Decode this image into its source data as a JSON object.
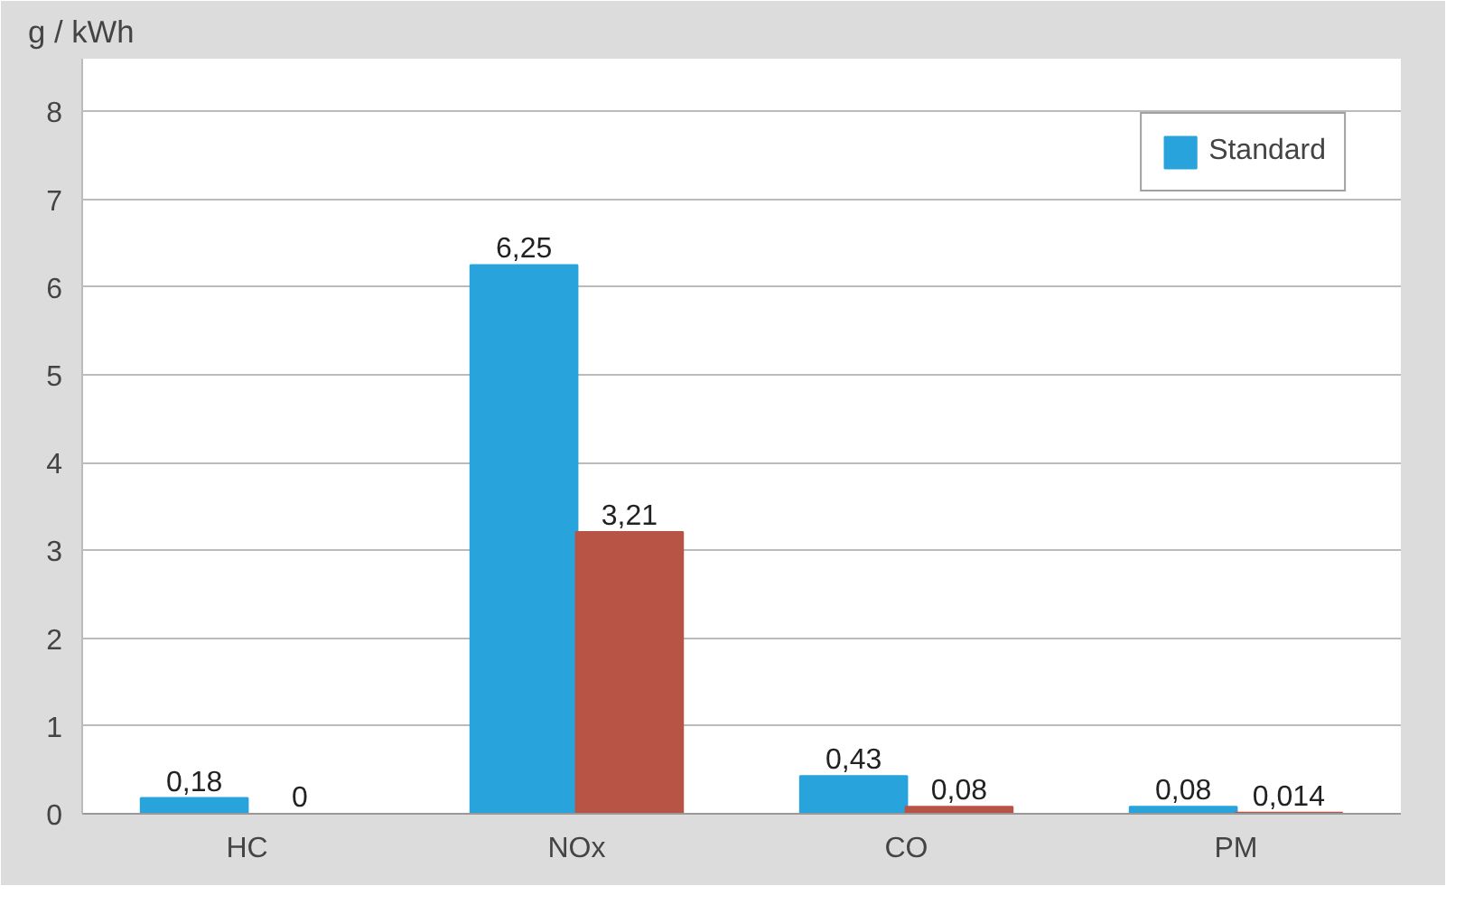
{
  "chart_data": {
    "type": "bar",
    "ylabel": "g / kWh",
    "categories": [
      "HC",
      "NOx",
      "CO",
      "PM"
    ],
    "series": [
      {
        "name": "Standard",
        "color": "#29a3dc",
        "values": [
          0.18,
          6.25,
          0.43,
          0.08
        ],
        "value_labels": [
          "0,18",
          "6,25",
          "0,43",
          "0,08"
        ]
      },
      {
        "color": "#b85445",
        "values": [
          0,
          3.21,
          0.08,
          0.014
        ],
        "value_labels": [
          "0",
          "3,21",
          "0,08",
          "0,014"
        ]
      }
    ],
    "ylim": [
      0,
      8.6
    ],
    "yticks": [
      0,
      1,
      2,
      3,
      4,
      5,
      6,
      7,
      8
    ],
    "grid": "y",
    "legend": "top right"
  }
}
